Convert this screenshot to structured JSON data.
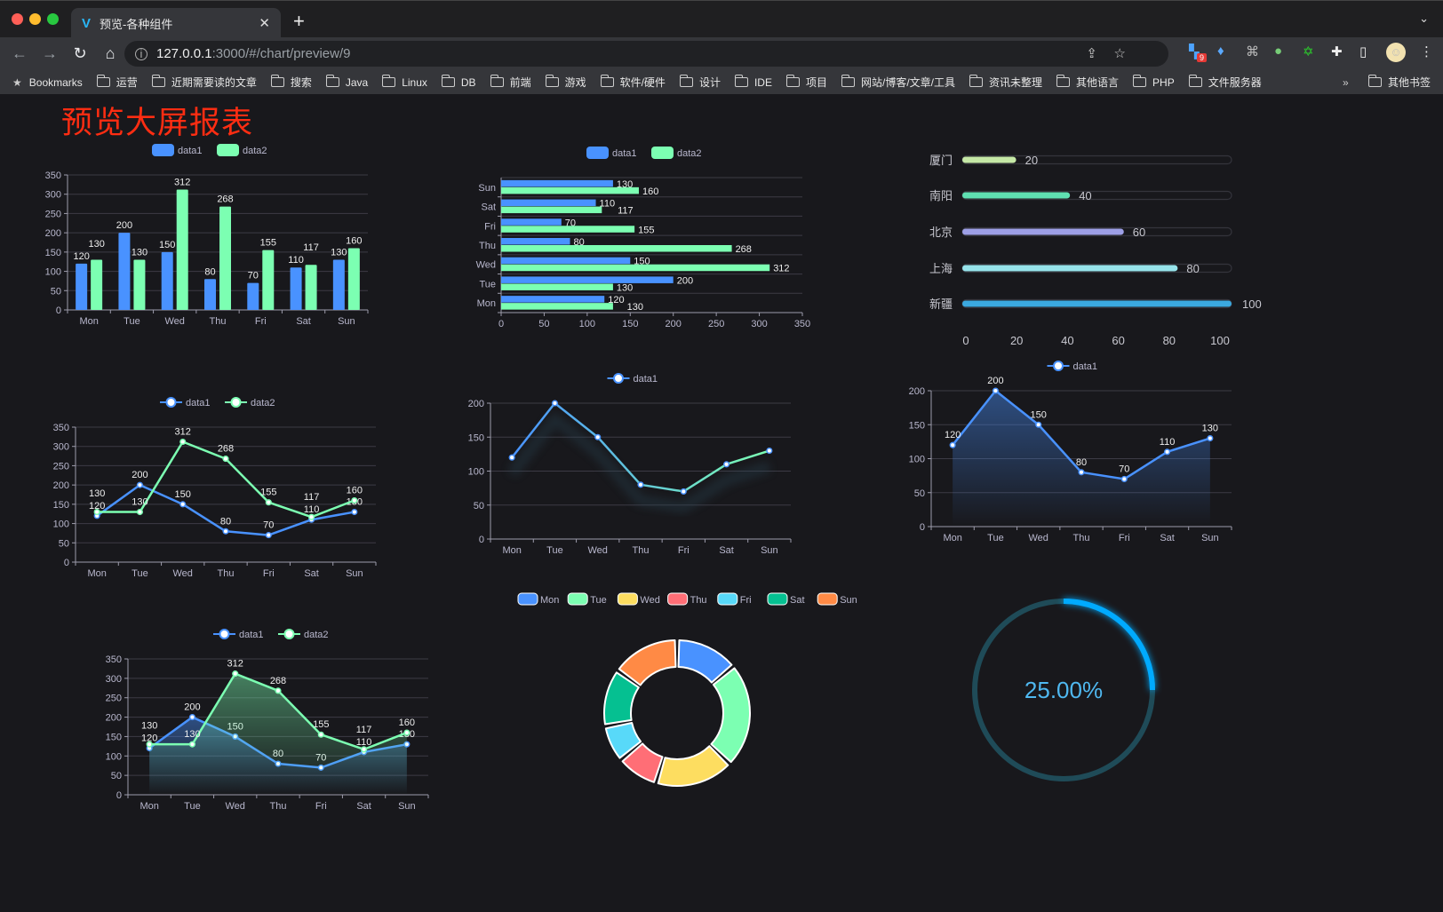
{
  "browser": {
    "tab_title": "预览-各种组件",
    "url_host": "127.0.0.1",
    "url_rest": ":3000/#/chart/preview/9",
    "extension_badge": "9",
    "bookmarks_label": "Bookmarks",
    "bookmarks": [
      "运营",
      "近期需要读的文章",
      "搜索",
      "Java",
      "Linux",
      "DB",
      "前端",
      "游戏",
      "软件/硬件",
      "设计",
      "IDE",
      "项目",
      "网站/博客/文章/工具",
      "资讯未整理",
      "其他语言",
      "PHP",
      "文件服务器"
    ],
    "overflow": "»",
    "other_bookmarks": "其他书签"
  },
  "page": {
    "title": "预览大屏报表"
  },
  "colors": {
    "data1": "#4992ff",
    "data2": "#7cffb2",
    "title": "#ff2d12"
  },
  "chart_data": [
    {
      "type": "bar",
      "categories": [
        "Mon",
        "Tue",
        "Wed",
        "Thu",
        "Fri",
        "Sat",
        "Sun"
      ],
      "ylim": [
        0,
        350
      ],
      "yticks": [
        0,
        50,
        100,
        150,
        200,
        250,
        300,
        350
      ],
      "legend": "top-center",
      "grid": true,
      "series": [
        {
          "name": "data1",
          "color": "#4992ff",
          "values": [
            120,
            200,
            150,
            80,
            70,
            110,
            130
          ]
        },
        {
          "name": "data2",
          "color": "#7cffb2",
          "values": [
            130,
            130,
            312,
            268,
            155,
            117,
            160
          ]
        }
      ]
    },
    {
      "type": "bar",
      "orientation": "horizontal",
      "categories": [
        "Mon",
        "Tue",
        "Wed",
        "Thu",
        "Fri",
        "Sat",
        "Sun"
      ],
      "xlim": [
        0,
        350
      ],
      "xticks": [
        0,
        50,
        100,
        150,
        200,
        250,
        300,
        350
      ],
      "legend": "top-center",
      "grid": true,
      "series": [
        {
          "name": "data1",
          "color": "#4992ff",
          "values": [
            120,
            200,
            150,
            80,
            70,
            110,
            130
          ]
        },
        {
          "name": "data2",
          "color": "#7cffb2",
          "values": [
            130,
            130,
            312,
            268,
            155,
            117,
            160
          ]
        }
      ]
    },
    {
      "type": "bar",
      "orientation": "horizontal",
      "style": "progress",
      "categories": [
        "厦门",
        "南阳",
        "北京",
        "上海",
        "新疆"
      ],
      "values": [
        20,
        40,
        60,
        80,
        100
      ],
      "colors": [
        "#c5e8a6",
        "#5fe0b2",
        "#9d9fe6",
        "#96e3ea",
        "#3ba9e0"
      ],
      "xlim": [
        0,
        100
      ],
      "xticks": [
        0,
        20,
        40,
        60,
        80,
        100
      ]
    },
    {
      "type": "line",
      "categories": [
        "Mon",
        "Tue",
        "Wed",
        "Thu",
        "Fri",
        "Sat",
        "Sun"
      ],
      "ylim": [
        0,
        350
      ],
      "yticks": [
        0,
        50,
        100,
        150,
        200,
        250,
        300,
        350
      ],
      "legend": "top-center",
      "grid": true,
      "series": [
        {
          "name": "data1",
          "color": "#4992ff",
          "values": [
            120,
            200,
            150,
            80,
            70,
            110,
            130
          ]
        },
        {
          "name": "data2",
          "color": "#7cffb2",
          "values": [
            130,
            130,
            312,
            268,
            155,
            117,
            160
          ]
        }
      ]
    },
    {
      "type": "line",
      "categories": [
        "Mon",
        "Tue",
        "Wed",
        "Thu",
        "Fri",
        "Sat",
        "Sun"
      ],
      "ylim": [
        0,
        200
      ],
      "yticks": [
        0,
        50,
        100,
        150,
        200
      ],
      "legend": "top-center",
      "grid": true,
      "line_gradient": [
        "#4992ff",
        "#7cffb2"
      ],
      "shadow": true,
      "series": [
        {
          "name": "data1",
          "color": "#4992ff",
          "values": [
            120,
            200,
            150,
            80,
            70,
            110,
            130
          ],
          "labels": false
        }
      ]
    },
    {
      "type": "area",
      "categories": [
        "Mon",
        "Tue",
        "Wed",
        "Thu",
        "Fri",
        "Sat",
        "Sun"
      ],
      "ylim": [
        0,
        200
      ],
      "yticks": [
        0,
        50,
        100,
        150,
        200
      ],
      "legend": "top-center",
      "grid": true,
      "series": [
        {
          "name": "data1",
          "color": "#4992ff",
          "values": [
            120,
            200,
            150,
            80,
            70,
            110,
            130
          ]
        }
      ]
    },
    {
      "type": "pie",
      "style": "donut",
      "legend": "top-center",
      "categories": [
        "Mon",
        "Tue",
        "Wed",
        "Thu",
        "Fri",
        "Sat",
        "Sun"
      ],
      "values": [
        120,
        200,
        150,
        80,
        70,
        110,
        130
      ],
      "colors": [
        "#4992ff",
        "#7cffb2",
        "#fddd60",
        "#ff6e76",
        "#58d9f9",
        "#05c091",
        "#ff8a45"
      ]
    },
    {
      "type": "area",
      "categories": [
        "Mon",
        "Tue",
        "Wed",
        "Thu",
        "Fri",
        "Sat",
        "Sun"
      ],
      "ylim": [
        0,
        350
      ],
      "yticks": [
        0,
        50,
        100,
        150,
        200,
        250,
        300,
        350
      ],
      "legend": "top-center",
      "grid": true,
      "series": [
        {
          "name": "data1",
          "color": "#4992ff",
          "values": [
            120,
            200,
            150,
            80,
            70,
            110,
            130
          ]
        },
        {
          "name": "data2",
          "color": "#7cffb2",
          "values": [
            130,
            130,
            312,
            268,
            155,
            117,
            160
          ]
        }
      ]
    },
    {
      "type": "gauge",
      "value": 25,
      "label": "25.00%",
      "color": "#00aaff",
      "track_color": "#1f4b58",
      "label_color": "#4fb8f0"
    }
  ]
}
